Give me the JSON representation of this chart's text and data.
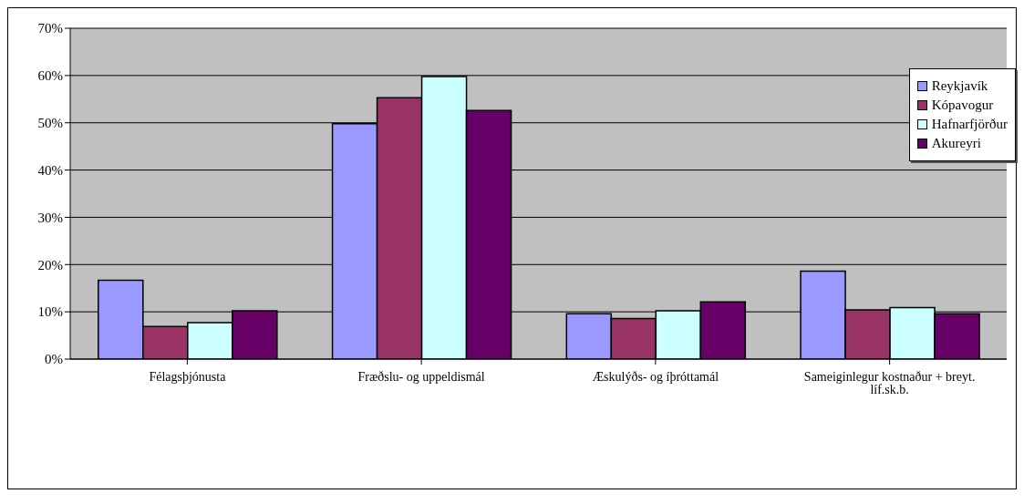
{
  "chart_data": {
    "type": "bar",
    "categories": [
      "Félagsþjónusta",
      "Fræðslu- og uppeldismál",
      "Æskulýðs- og íþróttamál",
      "Sameiginlegur kostnaður + breyt. líf.sk.b."
    ],
    "series": [
      {
        "name": "Reykjavík",
        "color": "#9999ff",
        "values": [
          16.7,
          49.8,
          9.6,
          18.6
        ]
      },
      {
        "name": "Kópavogur",
        "color": "#993366",
        "values": [
          6.9,
          55.3,
          8.6,
          10.4
        ]
      },
      {
        "name": "Hafnarfjörður",
        "color": "#ccffff",
        "values": [
          7.7,
          59.8,
          10.2,
          10.9
        ]
      },
      {
        "name": "Akureyri",
        "color": "#660066",
        "values": [
          10.2,
          52.6,
          12.1,
          9.6
        ]
      }
    ],
    "ylim": [
      0,
      70
    ],
    "yticks": [
      {
        "value": 0,
        "label": "0%"
      },
      {
        "value": 10,
        "label": "10%"
      },
      {
        "value": 20,
        "label": "20%"
      },
      {
        "value": 30,
        "label": "30%"
      },
      {
        "value": 40,
        "label": "40%"
      },
      {
        "value": 50,
        "label": "50%"
      },
      {
        "value": 60,
        "label": "60%"
      },
      {
        "value": 70,
        "label": "70%"
      }
    ],
    "grid": "y",
    "legend": "right"
  }
}
